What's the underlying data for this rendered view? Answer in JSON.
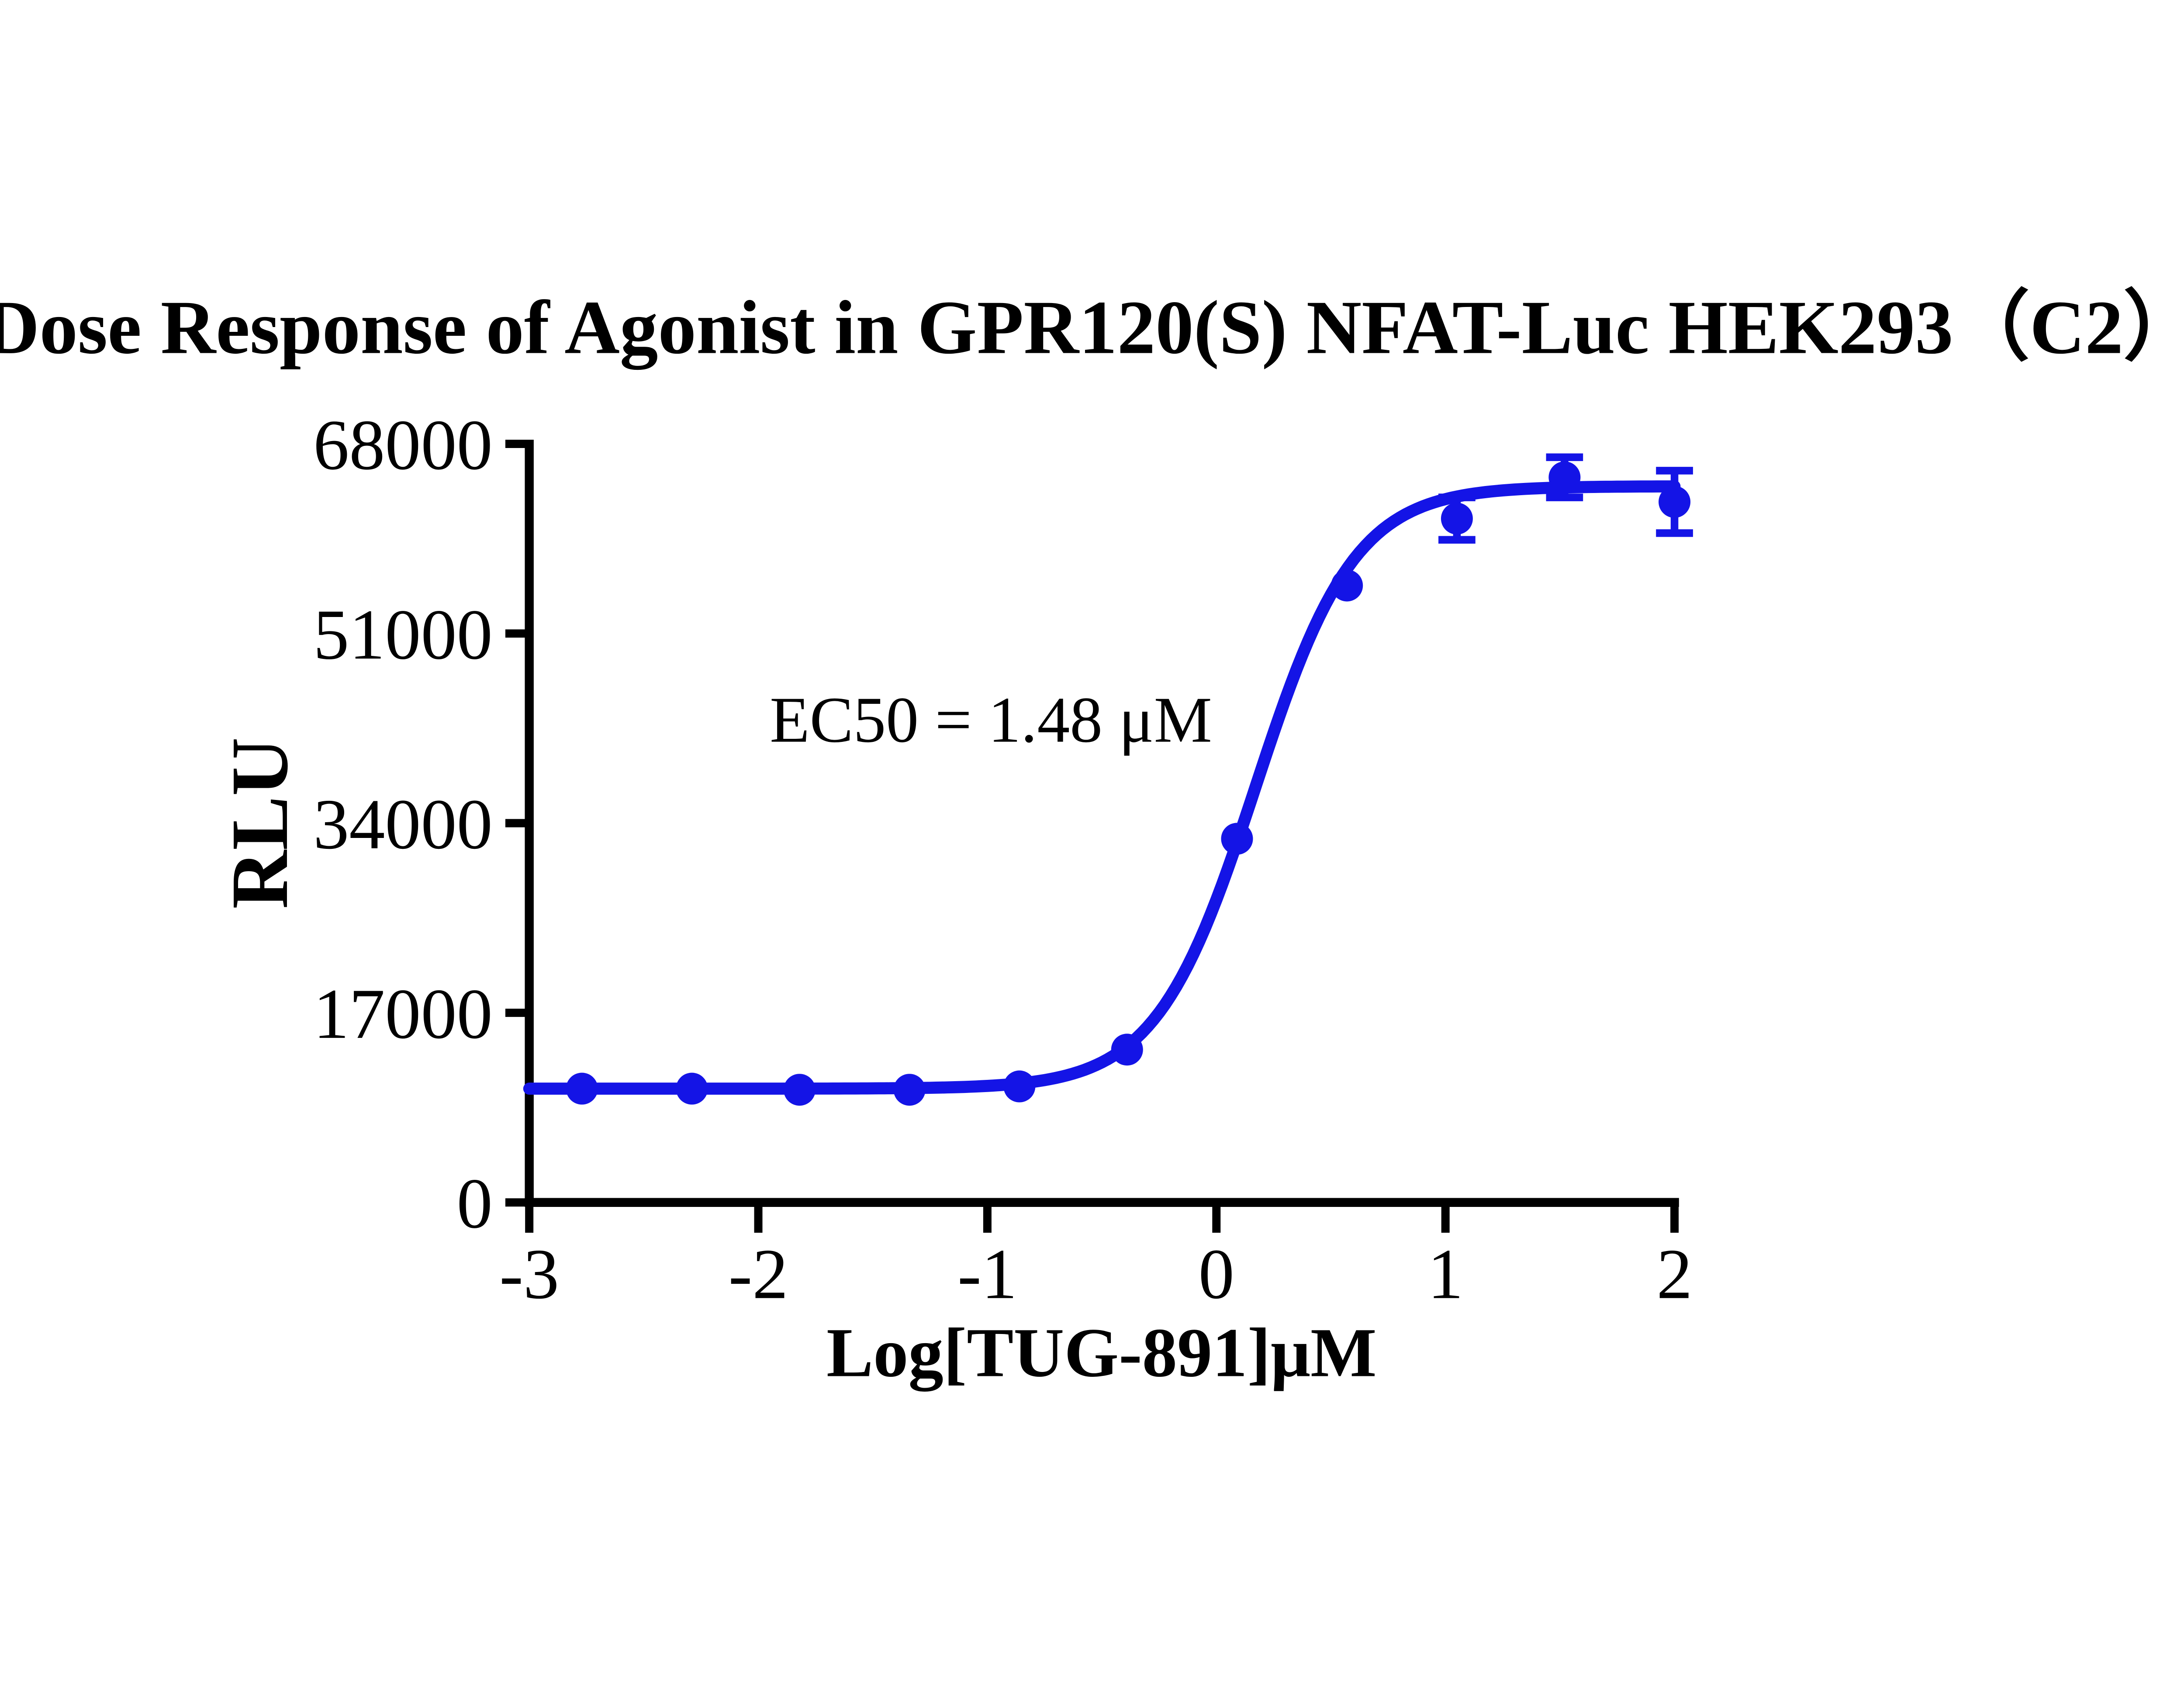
{
  "figure": {
    "background_color": "#ffffff",
    "axis_color": "#000000",
    "accent_color": "#1414e6"
  },
  "chart_data": {
    "type": "scatter",
    "title": "Dose Response of Agonist in GPR120(S) NFAT-Luc HEK293（C2）",
    "xlabel": "Log[TUG-891]μM",
    "ylabel": "RLU",
    "xlim": [
      -3,
      2
    ],
    "ylim": [
      0,
      68000
    ],
    "x_ticks": [
      -3,
      -2,
      -1,
      0,
      1,
      2
    ],
    "y_ticks": [
      0,
      17000,
      34000,
      51000,
      68000
    ],
    "grid": false,
    "legend": "none",
    "annotation": {
      "text": "EC50 = 1.48 μM",
      "x": -1.95,
      "y": 41300
    },
    "series": [
      {
        "name": "TUG-891",
        "color": "#1414e6",
        "marker": "circle",
        "x": [
          -2.77,
          -2.29,
          -1.82,
          -1.34,
          -0.86,
          -0.39,
          0.09,
          0.57,
          1.05,
          1.52,
          2.0
        ],
        "y": [
          10200,
          10200,
          10100,
          10100,
          10400,
          13700,
          32600,
          55300,
          61300,
          65000,
          62800
        ],
        "yerr": [
          0,
          0,
          0,
          0,
          0,
          0,
          0,
          0,
          1900,
          1800,
          2800
        ]
      }
    ],
    "fit_curve": {
      "model": "four-parameter-logistic",
      "bottom": 10200,
      "top": 64200,
      "log_ec50": 0.17,
      "hill_slope": 2.0,
      "ec50_um": 1.48
    }
  }
}
